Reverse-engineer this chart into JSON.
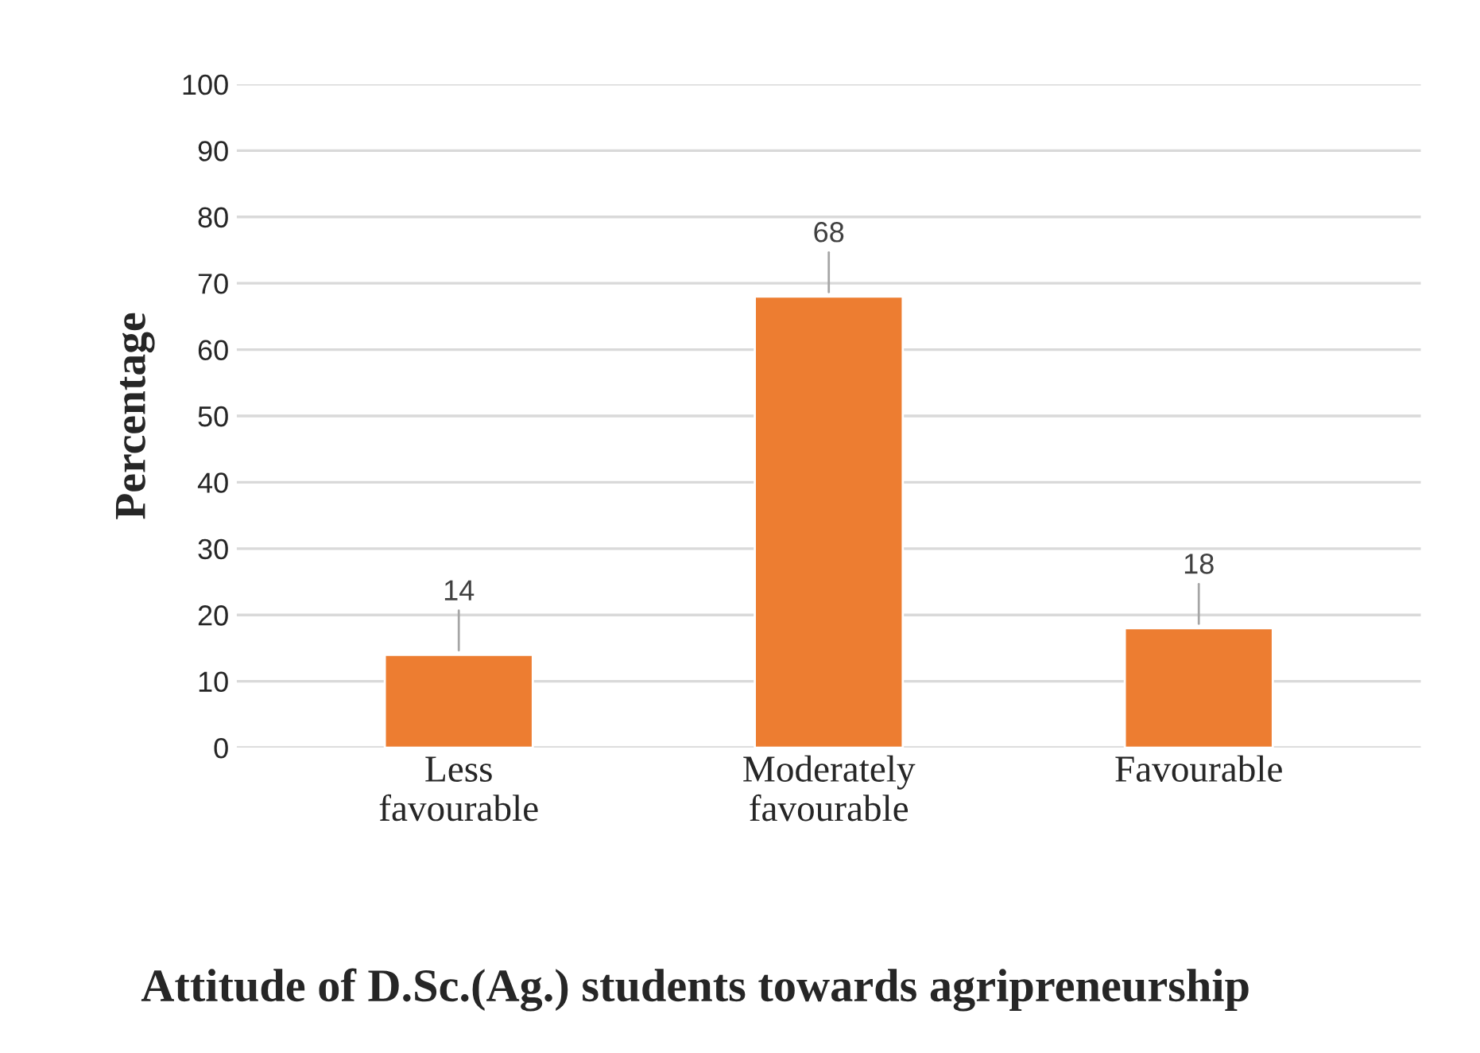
{
  "chart_data": {
    "type": "bar",
    "title": "Attitude of D.Sc.(Ag.) students towards agripreneurship",
    "ylabel": "Percentage",
    "categories": [
      "Less\nfavourable",
      "Moderately\nfavourable",
      "Favourable"
    ],
    "values": [
      14,
      68,
      18
    ],
    "color": "#ed7d31",
    "ylim": [
      0,
      100
    ],
    "yticks": [
      0,
      10,
      20,
      30,
      40,
      50,
      60,
      70,
      80,
      90,
      100
    ],
    "grid": "y",
    "data_labels": true
  }
}
